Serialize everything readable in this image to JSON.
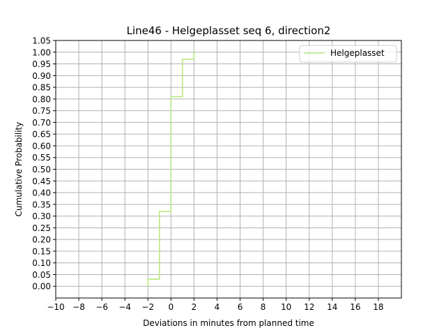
{
  "chart_data": {
    "type": "line",
    "title": "Line46 - Helgeplasset seq 6, direction2",
    "xlabel": "Deviations in minutes from planned time",
    "ylabel": "Cumulative Probability",
    "xlim": [
      -10,
      20
    ],
    "ylim": [
      -0.05,
      1.05
    ],
    "xticks": [
      -10,
      -8,
      -6,
      -4,
      -2,
      0,
      2,
      4,
      6,
      8,
      10,
      12,
      14,
      16,
      18
    ],
    "xtick_labels": [
      "−10",
      "−8",
      "−6",
      "−4",
      "−2",
      "0",
      "2",
      "4",
      "6",
      "8",
      "10",
      "12",
      "14",
      "16",
      "18"
    ],
    "yticks": [
      0.0,
      0.05,
      0.1,
      0.15,
      0.2,
      0.25,
      0.3,
      0.35,
      0.4,
      0.45,
      0.5,
      0.55,
      0.6,
      0.65,
      0.7,
      0.75,
      0.8,
      0.85,
      0.9,
      0.95,
      1.0,
      1.05
    ],
    "ytick_labels": [
      "0.00",
      "0.05",
      "0.10",
      "0.15",
      "0.20",
      "0.25",
      "0.30",
      "0.35",
      "0.40",
      "0.45",
      "0.50",
      "0.55",
      "0.60",
      "0.65",
      "0.70",
      "0.75",
      "0.80",
      "0.85",
      "0.90",
      "0.95",
      "1.00",
      "1.05"
    ],
    "grid": true,
    "legend_position": "top-right",
    "series": [
      {
        "name": "Helgeplasset",
        "color": "#b5e878",
        "step": "post",
        "x": [
          -2,
          -1,
          0,
          1,
          2
        ],
        "y": [
          0.03,
          0.32,
          0.81,
          0.97,
          1.0
        ]
      }
    ]
  }
}
